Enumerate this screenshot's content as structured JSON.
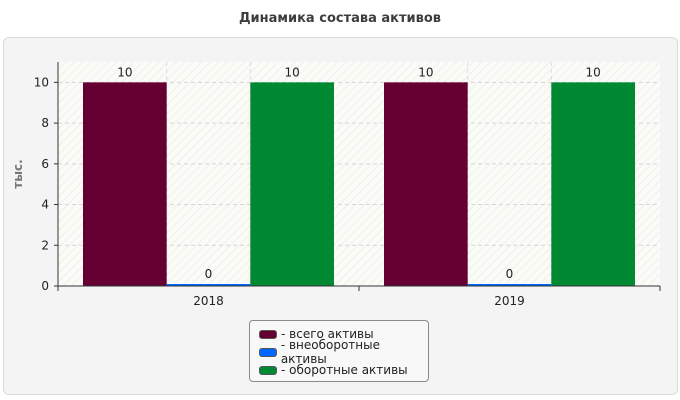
{
  "chart_data": {
    "type": "bar",
    "title": "Динамика состава активов",
    "ylabel": "тыс.",
    "xlabel": "",
    "categories": [
      "2018",
      "2019"
    ],
    "ylim": [
      0,
      11
    ],
    "yticks": [
      0,
      2,
      4,
      6,
      8,
      10
    ],
    "grid": true,
    "legend_position": "bottom",
    "series": [
      {
        "name": "- всего активы",
        "values": [
          10,
          10
        ],
        "color": "#660033"
      },
      {
        "name": "- внеоборотные активы",
        "values": [
          0,
          0
        ],
        "color": "#0066ff"
      },
      {
        "name": "- оборотные активы",
        "values": [
          10,
          10
        ],
        "color": "#008833"
      }
    ],
    "data_labels": [
      [
        "10",
        "10"
      ],
      [
        "0",
        "0"
      ],
      [
        "10",
        "10"
      ]
    ]
  }
}
